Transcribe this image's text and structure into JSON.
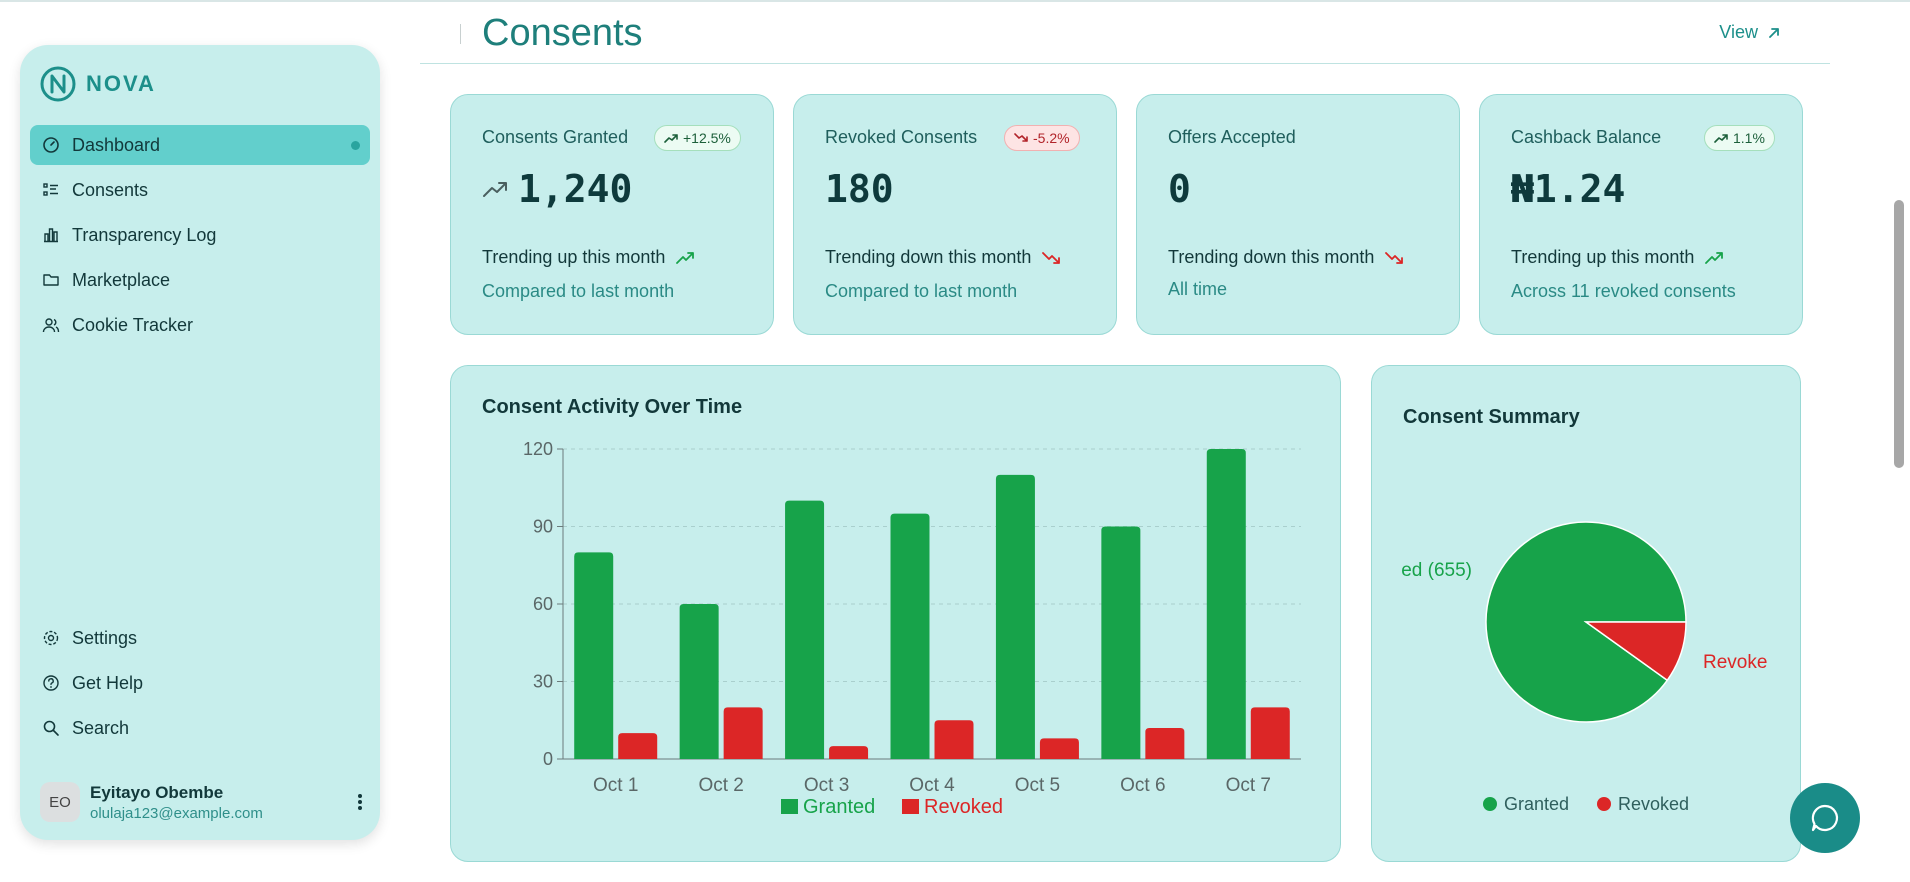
{
  "brand": {
    "name": "NOVA",
    "color": "#1c8f8a"
  },
  "nav": {
    "items": [
      {
        "label": "Dashboard",
        "icon": "gauge-icon",
        "active": true
      },
      {
        "label": "Consents",
        "icon": "list-icon"
      },
      {
        "label": "Transparency Log",
        "icon": "bar-chart-icon"
      },
      {
        "label": "Marketplace",
        "icon": "folder-icon"
      },
      {
        "label": "Cookie Tracker",
        "icon": "users-icon"
      }
    ],
    "bottom": [
      {
        "label": "Settings",
        "icon": "gear-icon"
      },
      {
        "label": "Get Help",
        "icon": "help-circle-icon"
      },
      {
        "label": "Search",
        "icon": "search-icon"
      }
    ]
  },
  "user": {
    "initials": "EO",
    "name": "Eyitayo Obembe",
    "email": "olulaja123@example.com"
  },
  "header": {
    "title": "Consents",
    "view_label": "View"
  },
  "stats": [
    {
      "label": "Consents Granted",
      "badge": "+12.5%",
      "badge_dir": "up",
      "value": "1,240",
      "trend": "Trending up this month",
      "trend_dir": "up",
      "sub": "Compared to last month"
    },
    {
      "label": "Revoked Consents",
      "badge": "-5.2%",
      "badge_dir": "down",
      "value": "180",
      "trend": "Trending down this month",
      "trend_dir": "down",
      "sub": "Compared to last month"
    },
    {
      "label": "Offers Accepted",
      "badge": "",
      "value": "0",
      "trend": "Trending down this month",
      "trend_dir": "down",
      "sub": "All time"
    },
    {
      "label": "Cashback Balance",
      "badge": "1.1%",
      "badge_dir": "up",
      "value": "₦1.24",
      "trend": "Trending up this month",
      "trend_dir": "up",
      "sub": "Across 11 revoked consents"
    }
  ],
  "chart_data": [
    {
      "type": "bar",
      "title": "Consent Activity Over Time",
      "categories": [
        "Oct 1",
        "Oct 2",
        "Oct 3",
        "Oct 4",
        "Oct 5",
        "Oct 6",
        "Oct 7"
      ],
      "series": [
        {
          "name": "Granted",
          "color": "#17a34a",
          "values": [
            80,
            60,
            100,
            95,
            110,
            90,
            120
          ]
        },
        {
          "name": "Revoked",
          "color": "#dc2626",
          "values": [
            10,
            20,
            5,
            15,
            8,
            12,
            20
          ]
        }
      ],
      "ylim": [
        0,
        120
      ],
      "yticks": [
        0,
        30,
        60,
        90,
        120
      ],
      "grid": true,
      "legend": "bottom"
    },
    {
      "type": "pie",
      "title": "Consent Summary",
      "slices": [
        {
          "name": "Granted",
          "value": 655,
          "color": "#17a34a",
          "label": "ed (655)"
        },
        {
          "name": "Revoked",
          "value": 72,
          "color": "#dc2626",
          "label": "Revoke"
        }
      ],
      "legend": "bottom"
    }
  ],
  "colors": {
    "up": "#17a34a",
    "down": "#dc2626",
    "accent": "#1a8c88"
  }
}
